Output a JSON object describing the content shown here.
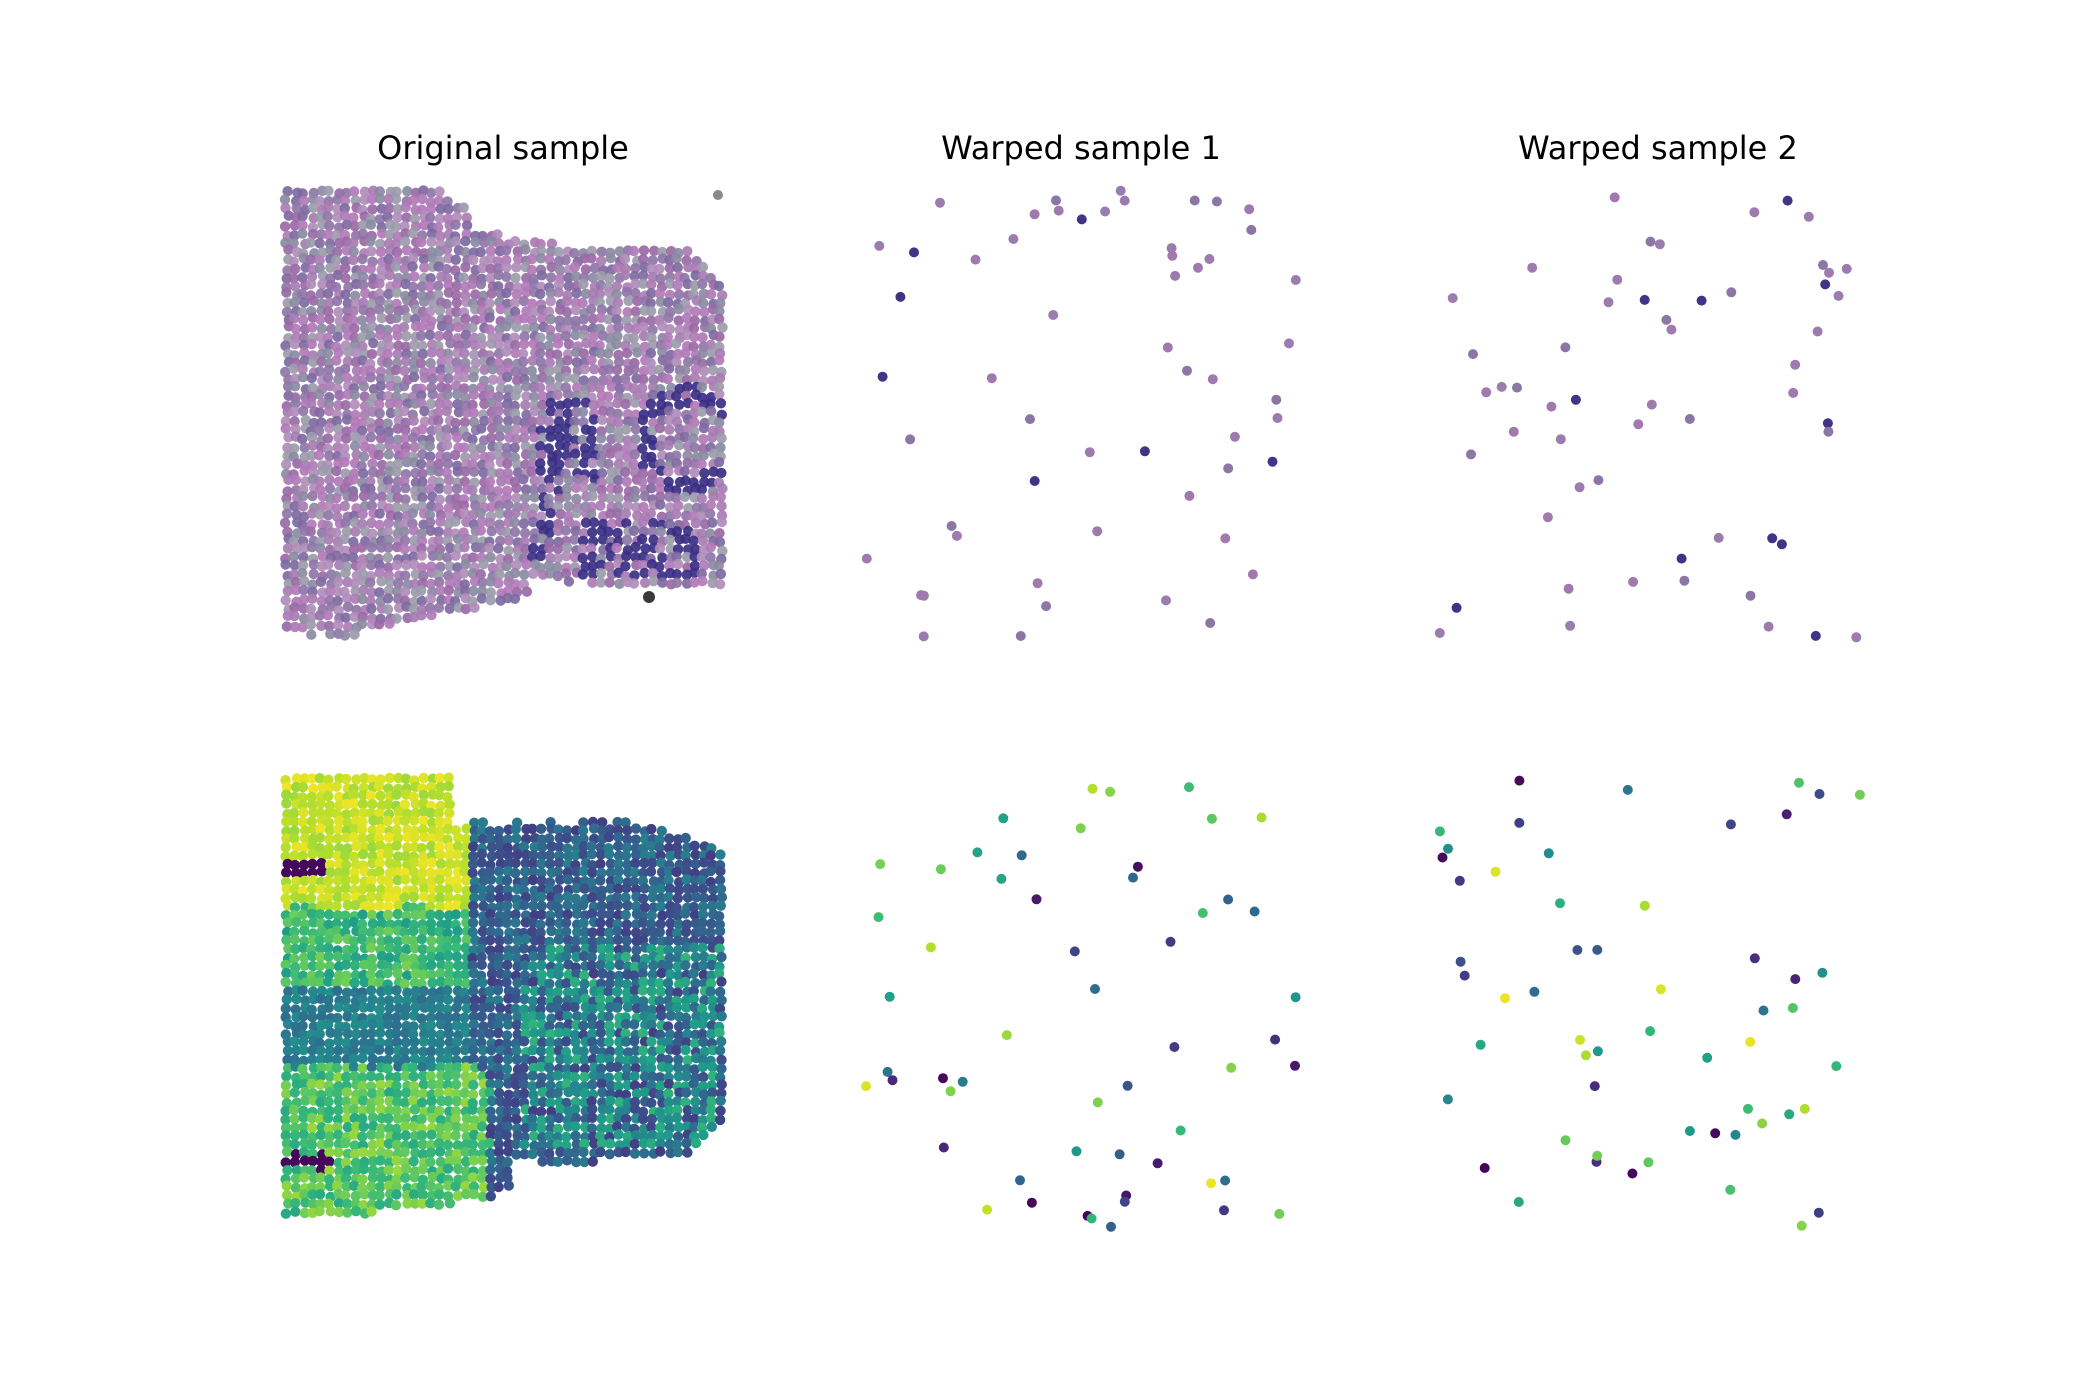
{
  "figure": {
    "column_titles": [
      "Original sample",
      "Warped sample 1",
      "Warped sample 2"
    ]
  },
  "chart_data": [
    {
      "type": "scatter",
      "title": "Original sample",
      "row": "histology",
      "palette": [
        "#9a6aa6",
        "#a77cb2",
        "#8f76a8",
        "#b08cba",
        "#8a8aa2",
        "#7e6aa2",
        "#9b9bab",
        "#b27ab8"
      ],
      "accent_color": "#3b2f86",
      "grid": false,
      "axes_visible": false
    },
    {
      "type": "scatter",
      "title": "Warped sample 1",
      "row": "histology",
      "points_approx": 55,
      "palette": [
        "#a07aae",
        "#9b7cae",
        "#8c76a6",
        "#3f3584",
        "#a98bba"
      ],
      "grid": false,
      "axes_visible": false
    },
    {
      "type": "scatter",
      "title": "Warped sample 2",
      "row": "histology",
      "points_approx": 55,
      "palette": [
        "#a07aae",
        "#9b7cae",
        "#8c76a6",
        "#3f3584",
        "#a98bba"
      ],
      "grid": false,
      "axes_visible": false
    },
    {
      "type": "scatter",
      "title": "",
      "row": "gene-expression",
      "colormap": "viridis",
      "grid": false,
      "axes_visible": false
    },
    {
      "type": "scatter",
      "title": "",
      "row": "gene-expression",
      "colormap": "viridis",
      "points_approx": 55,
      "grid": false,
      "axes_visible": false
    },
    {
      "type": "scatter",
      "title": "",
      "row": "gene-expression",
      "colormap": "viridis",
      "points_approx": 55,
      "grid": false,
      "axes_visible": false
    }
  ]
}
